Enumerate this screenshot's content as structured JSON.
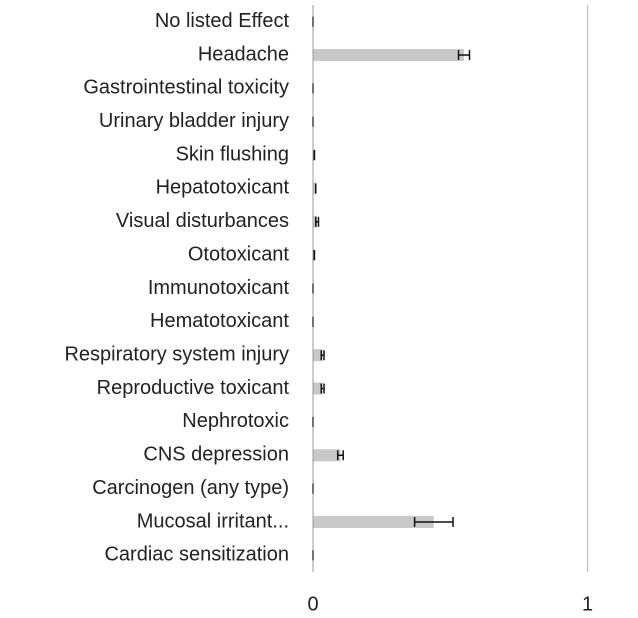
{
  "chart_data": {
    "type": "barh",
    "categories": [
      "No listed Effect",
      "Headache",
      "Gastrointestinal toxicity",
      "Urinary bladder injury",
      "Skin flushing",
      "Hepatotoxicant",
      "Visual disturbances",
      "Ototoxicant",
      "Immunotoxicant",
      "Hematotoxicant",
      "Respiratory system injury",
      "Reproductive toxicant",
      "Nephrotoxic",
      "CNS depression",
      "Carcinogen (any type)",
      "Mucosal irritant...",
      "Cardiac sensitization"
    ],
    "values": [
      0,
      0.55,
      0,
      0,
      0.005,
      0.01,
      0.015,
      0.005,
      0,
      0,
      0.035,
      0.035,
      0,
      0.1,
      0,
      0.44,
      0
    ],
    "errors": [
      0,
      0.02,
      0,
      0,
      0,
      0,
      0.005,
      0,
      0,
      0,
      0.005,
      0.005,
      0,
      0.01,
      0,
      0.07,
      0
    ],
    "color": "#c8c8c8",
    "xlim": [
      0,
      1.18
    ],
    "xticks": [
      0,
      1
    ],
    "grid": true
  }
}
